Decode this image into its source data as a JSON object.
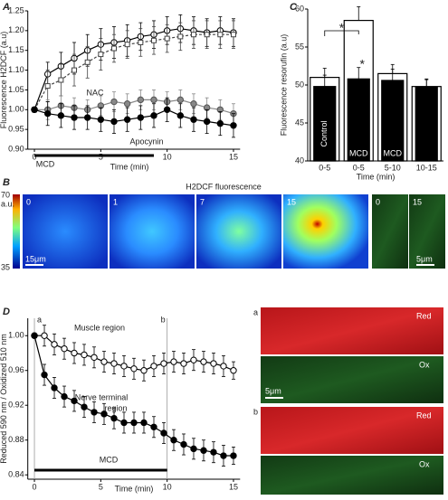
{
  "chart_data": [
    {
      "type": "line",
      "label": "A",
      "xlabel": "Time (min)",
      "ylabel": "Fluorescence H2DCF (a.u)",
      "x": [
        0,
        1,
        2,
        3,
        4,
        5,
        6,
        7,
        8,
        9,
        10,
        11,
        12,
        13,
        14,
        15
      ],
      "xlim": [
        -0.5,
        15.5
      ],
      "xticks": [
        0,
        5,
        10,
        15
      ],
      "ylim": [
        0.9,
        1.25
      ],
      "yticks": [
        {
          "value": 0.9,
          "label": "0.90"
        },
        0.95,
        {
          "value": 1.0,
          "label": "1.00"
        },
        1.05,
        {
          "value": 1.1,
          "label": "1.10"
        },
        1.15,
        {
          "value": 1.2,
          "label": "1.20"
        },
        1.25
      ],
      "series": [
        {
          "color": "#000",
          "marker": "open-circle",
          "dash": false,
          "values": [
            1.0,
            1.09,
            1.11,
            1.13,
            1.15,
            1.165,
            1.17,
            1.175,
            1.185,
            1.19,
            1.2,
            1.205,
            1.2,
            1.195,
            1.2,
            1.195
          ],
          "errors": [
            0,
            0.03,
            0.035,
            0.04,
            0.04,
            0.04,
            0.04,
            0.04,
            0.035,
            0.035,
            0.035,
            0.035,
            0.035,
            0.035,
            0.035,
            0.035
          ]
        },
        {
          "color": "#444",
          "marker": "open-square",
          "dash": true,
          "values": [
            1.0,
            1.06,
            1.075,
            1.1,
            1.12,
            1.14,
            1.155,
            1.165,
            1.17,
            1.175,
            1.18,
            1.185,
            1.19,
            1.19,
            1.19,
            1.19
          ],
          "errors": [
            0,
            0.04,
            0.04,
            0.04,
            0.04,
            0.04,
            0.035,
            0.035,
            0.035,
            0.035,
            0.035,
            0.035,
            0.035,
            0.035,
            0.035,
            0.035
          ]
        },
        {
          "color": "#888",
          "marker": "circle",
          "dash": false,
          "values": [
            1.0,
            1.0,
            1.01,
            1.005,
            1.0,
            1.01,
            1.02,
            1.015,
            1.025,
            1.025,
            1.02,
            1.025,
            1.015,
            1.005,
            1.0,
            0.99
          ],
          "errors": [
            0,
            0.025,
            0.025,
            0.025,
            0.025,
            0.025,
            0.025,
            0.025,
            0.025,
            0.025,
            0.025,
            0.025,
            0.025,
            0.025,
            0.025,
            0.025
          ]
        },
        {
          "color": "#000",
          "marker": "circle",
          "dash": false,
          "values": [
            1.0,
            0.99,
            0.985,
            0.98,
            0.98,
            0.975,
            0.97,
            0.975,
            0.98,
            0.985,
            1.0,
            0.985,
            0.975,
            0.97,
            0.965,
            0.96
          ],
          "errors": [
            0,
            0.03,
            0.03,
            0.03,
            0.03,
            0.03,
            0.03,
            0.03,
            0.03,
            0.03,
            0.03,
            0.03,
            0.03,
            0.03,
            0.03,
            0.03
          ]
        }
      ],
      "annotations": [
        "NAC",
        "Apocynin"
      ],
      "treatment": {
        "label": "MCD",
        "start": 0,
        "end": 9
      }
    },
    {
      "type": "bar",
      "label": "C",
      "xlabel": "Time (min)",
      "ylabel": "Fluorescence resorufin (a.u)",
      "categories": [
        "0-5",
        "0-5",
        "5-10",
        "10-15"
      ],
      "ylim": [
        40,
        60
      ],
      "yticks": [
        40,
        45,
        50,
        55,
        60
      ],
      "series": [
        {
          "color": "#fff",
          "values": [
            51,
            58.5,
            51.5,
            49.8
          ],
          "errors": [
            1.2,
            1.8,
            1.2,
            1
          ]
        },
        {
          "color": "#000",
          "values": [
            49.8,
            50.8,
            50.6,
            49.7
          ],
          "errors": [
            1.5,
            1.5,
            1.5,
            1
          ]
        }
      ],
      "bar_texts": [
        "Control",
        "MCD",
        "MCD"
      ],
      "significance": [
        "*",
        "*"
      ]
    },
    {
      "type": "line",
      "label": "D",
      "xlabel": "Time (min)",
      "ylabel": "Reduced 590 nm / Oxidized 510 nm",
      "x": [
        0,
        0.75,
        1.5,
        2.25,
        3,
        3.75,
        4.5,
        5.25,
        6,
        6.75,
        7.5,
        8.25,
        9,
        9.75,
        10.5,
        11.25,
        12,
        12.75,
        13.5,
        14.25,
        15
      ],
      "xlim": [
        -0.5,
        15.5
      ],
      "xticks": [
        0,
        5,
        10,
        15
      ],
      "ylim": [
        0.835,
        1.02
      ],
      "yticks": [
        0.84,
        0.88,
        0.92,
        0.96,
        {
          "value": 1.0,
          "label": "1.00"
        }
      ],
      "series": [
        {
          "color": "#000",
          "marker": "open-circle",
          "dash": false,
          "values": [
            1.0,
            1.0,
            0.99,
            0.985,
            0.98,
            0.978,
            0.975,
            0.97,
            0.968,
            0.965,
            0.962,
            0.96,
            0.965,
            0.968,
            0.97,
            0.968,
            0.972,
            0.97,
            0.968,
            0.965,
            0.96
          ],
          "errors": [
            0,
            0.012,
            0.012,
            0.012,
            0.012,
            0.012,
            0.012,
            0.012,
            0.012,
            0.012,
            0.012,
            0.012,
            0.012,
            0.012,
            0.012,
            0.012,
            0.012,
            0.012,
            0.012,
            0.012,
            0.01
          ]
        },
        {
          "color": "#000",
          "marker": "circle",
          "dash": false,
          "values": [
            1.0,
            0.955,
            0.94,
            0.93,
            0.925,
            0.918,
            0.912,
            0.91,
            0.905,
            0.9,
            0.9,
            0.9,
            0.895,
            0.888,
            0.88,
            0.875,
            0.87,
            0.868,
            0.866,
            0.862,
            0.862
          ],
          "errors": [
            0,
            0.012,
            0.012,
            0.012,
            0.012,
            0.012,
            0.012,
            0.012,
            0.012,
            0.012,
            0.012,
            0.012,
            0.012,
            0.012,
            0.012,
            0.012,
            0.012,
            0.012,
            0.012,
            0.012,
            0.01
          ]
        }
      ],
      "annotations": [
        "Muscle region",
        "Nerve terminal",
        "region"
      ],
      "event_lines": [
        {
          "x": 0,
          "label": "a"
        },
        {
          "x": 10,
          "label": "b"
        }
      ],
      "treatment": {
        "label": "MCD",
        "start": 0,
        "end": 10
      }
    }
  ],
  "images": {
    "label": "B",
    "title": "H2DCF fluorescence",
    "colorbar": {
      "max": 70,
      "unit": "a.u.",
      "min": 35
    },
    "frames": [
      "0",
      "1",
      "7",
      "15"
    ],
    "green_frames": [
      "0",
      "15"
    ],
    "scale_bars": [
      "15μm",
      "5μm"
    ]
  },
  "right_images": {
    "rows": [
      {
        "label": "a",
        "channels": [
          "Red",
          "Ox"
        ]
      },
      {
        "label": "b",
        "channels": [
          "Red",
          "Ox"
        ]
      }
    ],
    "scale_bar": "5μm"
  }
}
